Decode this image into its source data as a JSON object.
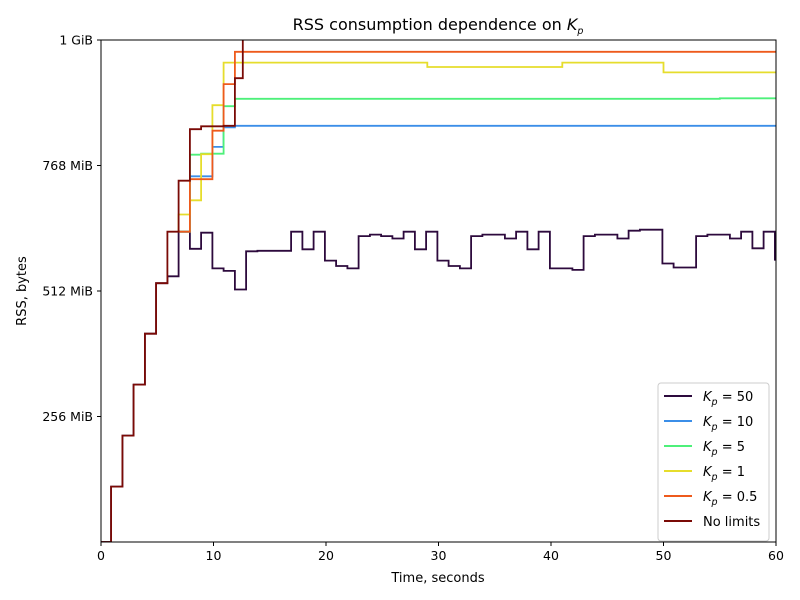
{
  "chart_data": {
    "type": "line",
    "title_prefix": "RSS consumption dependence on ",
    "title_symbol": "K",
    "title_subscript": "p",
    "xlabel": "Time, seconds",
    "ylabel": "RSS, bytes",
    "xlim": [
      0,
      60
    ],
    "ylim_mib": [
      0,
      1024
    ],
    "x_ticks": [
      0,
      10,
      20,
      30,
      40,
      50,
      60
    ],
    "y_ticks": [
      {
        "value": 256,
        "label": "256 MiB"
      },
      {
        "value": 512,
        "label": "512 MiB"
      },
      {
        "value": 768,
        "label": "768 MiB"
      },
      {
        "value": 1024,
        "label": "1 GiB"
      }
    ],
    "grid": false,
    "legend_position": "lower-right",
    "series": [
      {
        "name": "K_p = 50",
        "legend_symbol": "K",
        "legend_sub": "p",
        "legend_rest": " = 50",
        "color": "#2d0a3d",
        "points": [
          [
            0,
            0
          ],
          [
            0.9,
            0
          ],
          [
            0.9,
            113
          ],
          [
            1.9,
            113
          ],
          [
            1.9,
            217
          ],
          [
            2.9,
            217
          ],
          [
            2.9,
            321
          ],
          [
            3.9,
            321
          ],
          [
            3.9,
            425
          ],
          [
            4.9,
            425
          ],
          [
            4.9,
            528
          ],
          [
            5.9,
            528
          ],
          [
            5.9,
            542
          ],
          [
            6.9,
            542
          ],
          [
            6.9,
            633
          ],
          [
            7.9,
            633
          ],
          [
            7.9,
            598
          ],
          [
            8.9,
            598
          ],
          [
            8.9,
            631
          ],
          [
            9.9,
            631
          ],
          [
            9.9,
            558
          ],
          [
            10.9,
            558
          ],
          [
            10.9,
            553
          ],
          [
            11.9,
            553
          ],
          [
            11.9,
            515
          ],
          [
            12.9,
            515
          ],
          [
            12.9,
            593
          ],
          [
            13.9,
            593
          ],
          [
            13.9,
            594
          ],
          [
            15.9,
            594
          ],
          [
            15.9,
            594
          ],
          [
            16.9,
            594
          ],
          [
            16.9,
            633
          ],
          [
            17.9,
            633
          ],
          [
            17.9,
            597
          ],
          [
            18.9,
            597
          ],
          [
            18.9,
            633
          ],
          [
            19.9,
            633
          ],
          [
            19.9,
            574
          ],
          [
            20.9,
            574
          ],
          [
            20.9,
            563
          ],
          [
            21.9,
            563
          ],
          [
            21.9,
            558
          ],
          [
            22.9,
            558
          ],
          [
            22.9,
            624
          ],
          [
            23.9,
            624
          ],
          [
            23.9,
            627
          ],
          [
            24.9,
            627
          ],
          [
            24.9,
            624
          ],
          [
            25.9,
            624
          ],
          [
            25.9,
            619
          ],
          [
            26.9,
            619
          ],
          [
            26.9,
            633
          ],
          [
            27.9,
            633
          ],
          [
            27.9,
            597
          ],
          [
            28.9,
            597
          ],
          [
            28.9,
            633
          ],
          [
            29.9,
            633
          ],
          [
            29.9,
            574
          ],
          [
            30.9,
            574
          ],
          [
            30.9,
            563
          ],
          [
            31.9,
            563
          ],
          [
            31.9,
            558
          ],
          [
            32.9,
            558
          ],
          [
            32.9,
            624
          ],
          [
            33.9,
            624
          ],
          [
            33.9,
            627
          ],
          [
            35.9,
            627
          ],
          [
            35.9,
            619
          ],
          [
            36.9,
            619
          ],
          [
            36.9,
            633
          ],
          [
            37.9,
            633
          ],
          [
            37.9,
            597
          ],
          [
            38.9,
            597
          ],
          [
            38.9,
            633
          ],
          [
            39.9,
            633
          ],
          [
            39.9,
            558
          ],
          [
            41.9,
            558
          ],
          [
            41.9,
            555
          ],
          [
            42.9,
            555
          ],
          [
            42.9,
            624
          ],
          [
            43.9,
            624
          ],
          [
            43.9,
            627
          ],
          [
            45.9,
            627
          ],
          [
            45.9,
            619
          ],
          [
            46.9,
            619
          ],
          [
            46.9,
            635
          ],
          [
            47.9,
            635
          ],
          [
            47.9,
            637
          ],
          [
            49.9,
            637
          ],
          [
            49.9,
            568
          ],
          [
            50.9,
            568
          ],
          [
            50.9,
            560
          ],
          [
            52.9,
            560
          ],
          [
            52.9,
            624
          ],
          [
            53.9,
            624
          ],
          [
            53.9,
            627
          ],
          [
            55.9,
            627
          ],
          [
            55.9,
            619
          ],
          [
            56.9,
            619
          ],
          [
            56.9,
            633
          ],
          [
            57.9,
            633
          ],
          [
            57.9,
            599
          ],
          [
            58.9,
            599
          ],
          [
            58.9,
            633
          ],
          [
            59.9,
            633
          ],
          [
            59.9,
            574
          ]
        ]
      },
      {
        "name": "K_p = 10",
        "legend_symbol": "K",
        "legend_sub": "p",
        "legend_rest": " = 10",
        "color": "#3b8ee8",
        "points": [
          [
            6.9,
            633
          ],
          [
            7.9,
            633
          ],
          [
            7.9,
            746
          ],
          [
            9.9,
            746
          ],
          [
            9.9,
            806
          ],
          [
            10.9,
            806
          ],
          [
            10.9,
            846
          ],
          [
            11.9,
            846
          ],
          [
            11.9,
            849
          ],
          [
            60,
            849
          ]
        ]
      },
      {
        "name": "K_p = 5",
        "legend_symbol": "K",
        "legend_sub": "p",
        "legend_rest": " = 5",
        "color": "#4ef07a",
        "points": [
          [
            6.9,
            633
          ],
          [
            7.9,
            633
          ],
          [
            7.9,
            790
          ],
          [
            8.9,
            790
          ],
          [
            8.9,
            792
          ],
          [
            10.9,
            792
          ],
          [
            10.9,
            889
          ],
          [
            11.9,
            889
          ],
          [
            11.9,
            904
          ],
          [
            55,
            904
          ],
          [
            55,
            905
          ],
          [
            60,
            905
          ]
        ]
      },
      {
        "name": "K_p = 1",
        "legend_symbol": "K",
        "legend_sub": "p",
        "legend_rest": " = 1",
        "color": "#e6dd2c",
        "points": [
          [
            6.9,
            633
          ],
          [
            6.9,
            668
          ],
          [
            7.9,
            668
          ],
          [
            7.9,
            697
          ],
          [
            8.9,
            697
          ],
          [
            8.9,
            791
          ],
          [
            9.9,
            791
          ],
          [
            9.9,
            891
          ],
          [
            10.9,
            891
          ],
          [
            10.9,
            978
          ],
          [
            29,
            978
          ],
          [
            29,
            969
          ],
          [
            41,
            969
          ],
          [
            41,
            978
          ],
          [
            50,
            978
          ],
          [
            50,
            958
          ],
          [
            60,
            958
          ]
        ]
      },
      {
        "name": "K_p = 0.5",
        "legend_symbol": "K",
        "legend_sub": "p",
        "legend_rest": " = 0.5",
        "color": "#ee5a1c",
        "points": [
          [
            6.9,
            633
          ],
          [
            7.9,
            633
          ],
          [
            7.9,
            740
          ],
          [
            9.9,
            740
          ],
          [
            9.9,
            839
          ],
          [
            10.9,
            839
          ],
          [
            10.9,
            934
          ],
          [
            11.9,
            934
          ],
          [
            11.9,
            1000
          ],
          [
            60,
            1000
          ]
        ]
      },
      {
        "name": "No limits",
        "legend_text": "No limits",
        "color": "#7a0a06",
        "points": [
          [
            0,
            0
          ],
          [
            0.9,
            0
          ],
          [
            0.9,
            113
          ],
          [
            1.9,
            113
          ],
          [
            1.9,
            217
          ],
          [
            2.9,
            217
          ],
          [
            2.9,
            321
          ],
          [
            3.9,
            321
          ],
          [
            3.9,
            425
          ],
          [
            4.9,
            425
          ],
          [
            4.9,
            528
          ],
          [
            5.9,
            528
          ],
          [
            5.9,
            633
          ],
          [
            6.9,
            633
          ],
          [
            6.9,
            737
          ],
          [
            7.9,
            737
          ],
          [
            7.9,
            842
          ],
          [
            8.9,
            842
          ],
          [
            8.9,
            848
          ],
          [
            10.9,
            848
          ],
          [
            10.9,
            849
          ],
          [
            11.9,
            849
          ],
          [
            11.9,
            946
          ],
          [
            12.6,
            946
          ],
          [
            12.6,
            1024
          ]
        ]
      }
    ]
  }
}
